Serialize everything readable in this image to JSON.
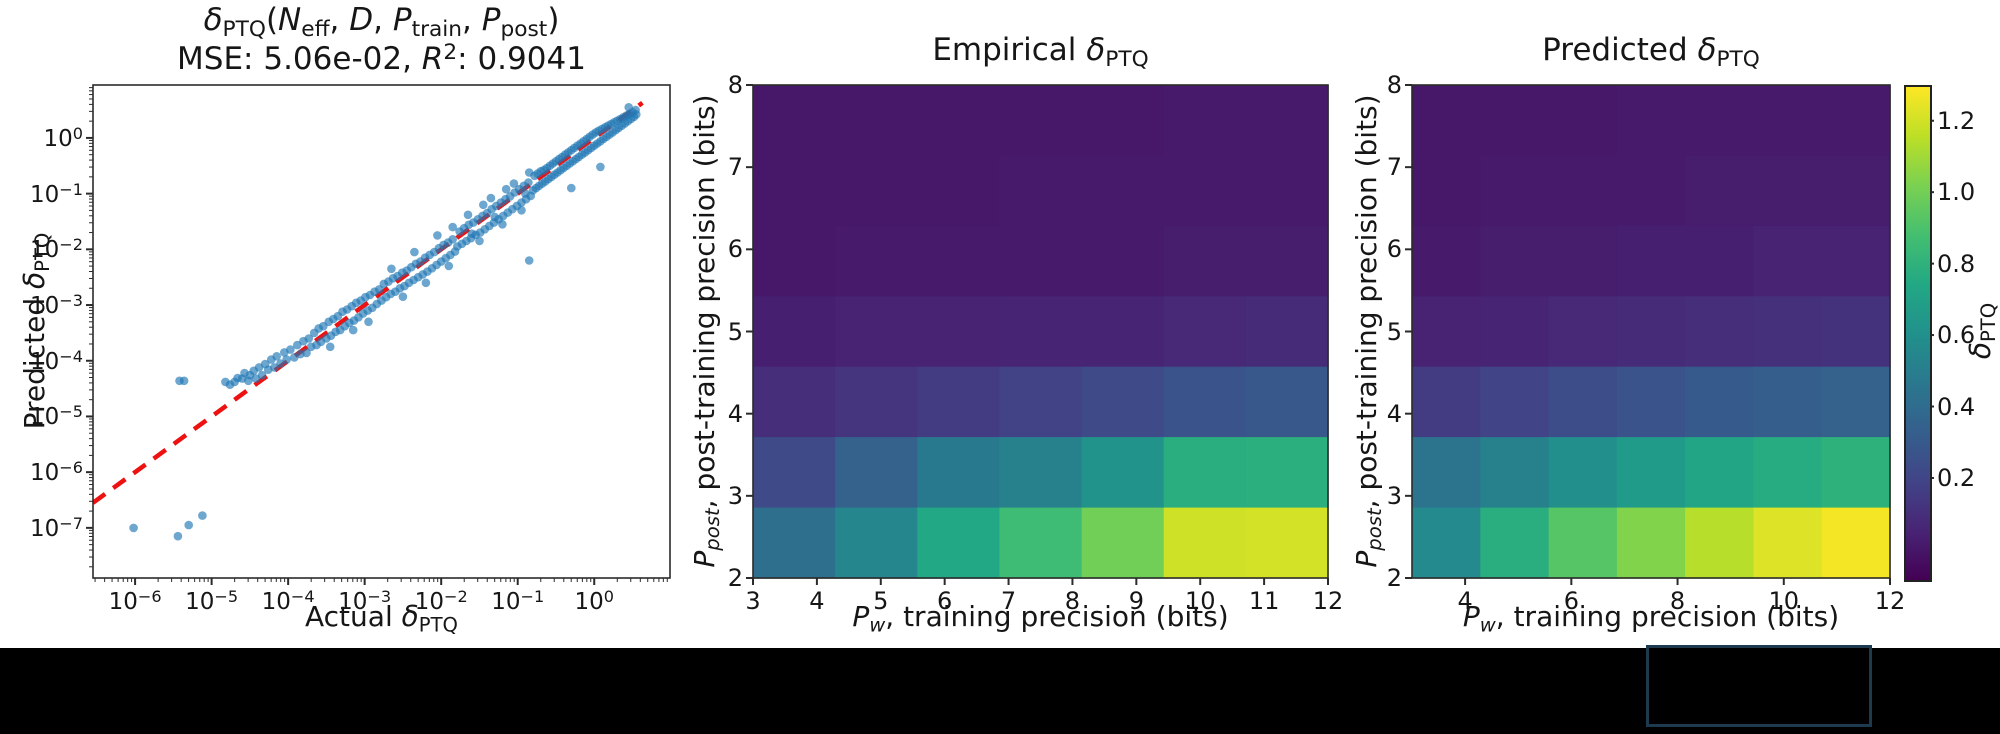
{
  "figure": {
    "background": "#ffffff"
  },
  "colors": {
    "scatter_point": "#1f77b4",
    "identity_line_red": "#ee1111",
    "axis_spine": "#2b2b2b",
    "text": "#161616",
    "black_bar": "#000000",
    "selection_box_border": "#1d3a4e"
  },
  "viridis_stops": [
    "#440154",
    "#482475",
    "#414487",
    "#355f8d",
    "#2a788e",
    "#21918c",
    "#22a884",
    "#44bf70",
    "#7ad151",
    "#bddf26",
    "#fde725"
  ],
  "text": {
    "scatter_title": {
      "hat": "ˆ",
      "delta": "δ",
      "sub": "PTQ",
      "open": "(",
      "N": "N",
      "N_sub": "eff",
      "c1": ", ",
      "D": "D",
      "c2": ", ",
      "P1": "P",
      "P1_sub": "train",
      "c3": ", ",
      "P2": "P",
      "P2_sub": "post",
      "close": ")"
    },
    "scatter_stats": {
      "mse": "MSE: 5.06e-02, ",
      "R": "R",
      "exp": "2",
      "val": ": 0.9041"
    },
    "scatter_xlabel": {
      "prefix": "Actual ",
      "delta": "δ",
      "sub": "PTQ"
    },
    "scatter_ylabel": {
      "prefix": "Predicted ",
      "delta": "δ",
      "sub": "PTQ"
    },
    "emp_title": {
      "prefix": "Empirical ",
      "delta": "δ",
      "sub": "PTQ"
    },
    "pred_title": {
      "prefix": "Predicted ",
      "delta": "δ",
      "sub": "PTQ"
    },
    "hm_xlabel": {
      "P": "P",
      "P_sub": "w",
      "rest": ", training precision (bits)"
    },
    "hm_ylabel": {
      "P": "P",
      "P_sub": "post",
      "rest": ", post-training precision (bits)"
    },
    "cb_label": {
      "delta": "δ",
      "sub": "PTQ"
    }
  },
  "chart_data": {
    "scatter": {
      "type": "scatter",
      "title": "δ̂_PTQ(N_eff, D, P_train, P_post)",
      "subtitle": "MSE: 5.06e-02, R^2: 0.9041",
      "xlabel": "Actual δ_PTQ",
      "ylabel": "Predicted δ_PTQ",
      "x_scale": "log",
      "y_scale": "log",
      "xlim_log10": [
        -6.55,
        0.99
      ],
      "ylim_log10": [
        -7.9,
        0.95
      ],
      "x_tick_exponents": [
        -6,
        -5,
        -4,
        -3,
        -2,
        -1,
        0
      ],
      "y_tick_exponents": [
        0,
        -1,
        -2,
        -3,
        -4,
        -5,
        -6,
        -7
      ],
      "identity_line": {
        "style": "dashed",
        "x_start_log10": -6.55,
        "x_end_log10": 0.63
      },
      "points_log10": [
        [
          -4.82,
          -4.38
        ],
        [
          -4.76,
          -4.43
        ],
        [
          -4.7,
          -4.38
        ],
        [
          -4.66,
          -4.31
        ],
        [
          -4.6,
          -4.32
        ],
        [
          -4.57,
          -4.22
        ],
        [
          -4.52,
          -4.36
        ],
        [
          -4.5,
          -4.26
        ],
        [
          -4.45,
          -4.18
        ],
        [
          -4.42,
          -4.32
        ],
        [
          -4.38,
          -4.12
        ],
        [
          -4.34,
          -4.26
        ],
        [
          -4.3,
          -4.06
        ],
        [
          -4.26,
          -4.16
        ],
        [
          -4.22,
          -3.98
        ],
        [
          -4.18,
          -4.12
        ],
        [
          -4.15,
          -3.92
        ],
        [
          -4.1,
          -4.05
        ],
        [
          -4.05,
          -3.85
        ],
        [
          -4.02,
          -3.98
        ],
        [
          -3.97,
          -3.8
        ],
        [
          -3.92,
          -3.94
        ],
        [
          -3.88,
          -3.72
        ],
        [
          -3.84,
          -3.88
        ],
        [
          -3.8,
          -3.65
        ],
        [
          -3.76,
          -3.86
        ],
        [
          -3.73,
          -3.6
        ],
        [
          -3.7,
          -3.75
        ],
        [
          -3.66,
          -3.5
        ],
        [
          -3.63,
          -3.72
        ],
        [
          -3.6,
          -3.42
        ],
        [
          -3.57,
          -3.66
        ],
        [
          -3.54,
          -3.38
        ],
        [
          -3.5,
          -3.6
        ],
        [
          -3.47,
          -3.3
        ],
        [
          -3.44,
          -3.55
        ],
        [
          -3.41,
          -3.25
        ],
        [
          -3.38,
          -3.48
        ],
        [
          -3.35,
          -3.2
        ],
        [
          -3.32,
          -3.45
        ],
        [
          -3.29,
          -3.12
        ],
        [
          -3.26,
          -3.38
        ],
        [
          -3.23,
          -3.08
        ],
        [
          -3.2,
          -3.32
        ],
        [
          -3.17,
          -3.02
        ],
        [
          -3.14,
          -3.28
        ],
        [
          -3.11,
          -2.96
        ],
        [
          -3.08,
          -3.22
        ],
        [
          -3.05,
          -2.92
        ],
        [
          -3.02,
          -3.15
        ],
        [
          -2.99,
          -2.86
        ],
        [
          -2.96,
          -3.1
        ],
        [
          -2.93,
          -2.82
        ],
        [
          -2.9,
          -3.05
        ],
        [
          -2.87,
          -2.76
        ],
        [
          -2.84,
          -2.98
        ],
        [
          -2.81,
          -2.72
        ],
        [
          -3.45,
          -3.75
        ],
        [
          -3.15,
          -3.45
        ],
        [
          -2.95,
          -3.3
        ],
        [
          -2.78,
          -2.92
        ],
        [
          -2.75,
          -2.62
        ],
        [
          -2.72,
          -2.86
        ],
        [
          -2.69,
          -2.58
        ],
        [
          -2.66,
          -2.8
        ],
        [
          -2.63,
          -2.52
        ],
        [
          -2.6,
          -2.76
        ],
        [
          -2.57,
          -2.48
        ],
        [
          -2.54,
          -2.7
        ],
        [
          -2.51,
          -2.42
        ],
        [
          -2.48,
          -2.66
        ],
        [
          -2.45,
          -2.38
        ],
        [
          -2.42,
          -2.6
        ],
        [
          -2.39,
          -2.32
        ],
        [
          -2.36,
          -2.55
        ],
        [
          -2.33,
          -2.26
        ],
        [
          -2.3,
          -2.5
        ],
        [
          -2.27,
          -2.22
        ],
        [
          -2.24,
          -2.45
        ],
        [
          -2.21,
          -2.15
        ],
        [
          -2.18,
          -2.4
        ],
        [
          -2.15,
          -2.1
        ],
        [
          -2.12,
          -2.34
        ],
        [
          -2.09,
          -2.05
        ],
        [
          -2.06,
          -2.28
        ],
        [
          -2.03,
          -1.98
        ],
        [
          -2.0,
          -2.22
        ],
        [
          -1.97,
          -1.92
        ],
        [
          -1.94,
          -2.16
        ],
        [
          -1.91,
          -1.88
        ],
        [
          -1.88,
          -2.1
        ],
        [
          -1.85,
          -1.82
        ],
        [
          -1.82,
          -2.04
        ],
        [
          -2.5,
          -2.85
        ],
        [
          -2.2,
          -2.6
        ],
        [
          -1.9,
          -2.3
        ],
        [
          -2.65,
          -2.35
        ],
        [
          -2.35,
          -2.05
        ],
        [
          -2.05,
          -1.75
        ],
        [
          -1.85,
          -1.6
        ],
        [
          -1.79,
          -1.95
        ],
        [
          -1.76,
          -1.68
        ],
        [
          -1.73,
          -1.9
        ],
        [
          -1.7,
          -1.62
        ],
        [
          -1.67,
          -1.85
        ],
        [
          -1.64,
          -1.56
        ],
        [
          -1.61,
          -1.8
        ],
        [
          -1.58,
          -1.52
        ],
        [
          -1.55,
          -1.74
        ],
        [
          -1.52,
          -1.46
        ],
        [
          -1.49,
          -1.7
        ],
        [
          -1.46,
          -1.4
        ],
        [
          -1.43,
          -1.64
        ],
        [
          -1.4,
          -1.35
        ],
        [
          -1.37,
          -1.58
        ],
        [
          -1.34,
          -1.28
        ],
        [
          -1.31,
          -1.52
        ],
        [
          -1.28,
          -1.22
        ],
        [
          -1.25,
          -1.46
        ],
        [
          -1.22,
          -1.16
        ],
        [
          -1.19,
          -1.4
        ],
        [
          -1.16,
          -1.1
        ],
        [
          -1.13,
          -1.34
        ],
        [
          -1.1,
          -1.05
        ],
        [
          -1.07,
          -1.28
        ],
        [
          -1.04,
          -0.98
        ],
        [
          -1.01,
          -1.22
        ],
        [
          -0.98,
          -0.92
        ],
        [
          -0.95,
          -1.16
        ],
        [
          -0.92,
          -0.86
        ],
        [
          -0.89,
          -1.1
        ],
        [
          -0.86,
          -0.8
        ],
        [
          -0.83,
          -1.04
        ],
        [
          -1.5,
          -1.85
        ],
        [
          -1.2,
          -1.55
        ],
        [
          -0.95,
          -1.3
        ],
        [
          -1.65,
          -1.38
        ],
        [
          -1.35,
          -1.08
        ],
        [
          -1.05,
          -0.82
        ],
        [
          -0.85,
          -0.62
        ],
        [
          -1.45,
          -1.2
        ],
        [
          -1.15,
          -0.92
        ],
        [
          -0.9,
          -1.0
        ],
        [
          -1.6,
          -1.72
        ],
        [
          -1.3,
          -1.42
        ],
        [
          -0.8,
          -0.94
        ],
        [
          -0.78,
          -0.68
        ],
        [
          -0.76,
          -0.9
        ],
        [
          -0.74,
          -0.64
        ],
        [
          -0.72,
          -0.86
        ],
        [
          -0.7,
          -0.6
        ],
        [
          -0.68,
          -0.82
        ],
        [
          -0.66,
          -0.58
        ],
        [
          -0.64,
          -0.78
        ],
        [
          -0.62,
          -0.54
        ],
        [
          -0.6,
          -0.74
        ],
        [
          -0.58,
          -0.5
        ],
        [
          -0.56,
          -0.7
        ],
        [
          -0.54,
          -0.46
        ],
        [
          -0.52,
          -0.66
        ],
        [
          -0.5,
          -0.42
        ],
        [
          -0.48,
          -0.62
        ],
        [
          -0.46,
          -0.38
        ],
        [
          -0.44,
          -0.58
        ],
        [
          -0.42,
          -0.34
        ],
        [
          -0.4,
          -0.54
        ],
        [
          -0.38,
          -0.3
        ],
        [
          -0.36,
          -0.5
        ],
        [
          -0.34,
          -0.26
        ],
        [
          -0.32,
          -0.46
        ],
        [
          -0.3,
          -0.22
        ],
        [
          -0.28,
          -0.42
        ],
        [
          -0.26,
          -0.18
        ],
        [
          -0.24,
          -0.38
        ],
        [
          -0.22,
          -0.14
        ],
        [
          -0.2,
          -0.34
        ],
        [
          -0.18,
          -0.1
        ],
        [
          -0.16,
          -0.3
        ],
        [
          -0.14,
          -0.06
        ],
        [
          -0.12,
          -0.26
        ],
        [
          -0.1,
          -0.02
        ],
        [
          -0.08,
          -0.22
        ],
        [
          -0.06,
          0.02
        ],
        [
          -0.04,
          -0.18
        ],
        [
          -0.02,
          0.06
        ],
        [
          0.0,
          -0.14
        ],
        [
          0.02,
          0.1
        ],
        [
          0.04,
          -0.1
        ],
        [
          0.06,
          0.13
        ],
        [
          0.08,
          -0.06
        ],
        [
          0.1,
          0.16
        ],
        [
          0.12,
          -0.02
        ],
        [
          0.14,
          0.19
        ],
        [
          0.16,
          0.02
        ],
        [
          0.18,
          0.22
        ],
        [
          0.2,
          0.06
        ],
        [
          0.22,
          0.25
        ],
        [
          0.24,
          0.1
        ],
        [
          0.26,
          0.28
        ],
        [
          0.28,
          0.14
        ],
        [
          0.3,
          0.31
        ],
        [
          0.32,
          0.18
        ],
        [
          0.34,
          0.34
        ],
        [
          0.36,
          0.22
        ],
        [
          0.38,
          0.37
        ],
        [
          0.4,
          0.26
        ],
        [
          0.42,
          0.4
        ],
        [
          0.44,
          0.3
        ],
        [
          0.46,
          0.43
        ],
        [
          0.48,
          0.34
        ],
        [
          0.5,
          0.46
        ],
        [
          0.52,
          0.38
        ],
        [
          0.54,
          0.5
        ],
        [
          0.55,
          0.42
        ],
        [
          0.45,
          0.55
        ],
        [
          -5.42,
          -4.36
        ],
        [
          -5.36,
          -4.36
        ],
        [
          -6.02,
          -7.0
        ],
        [
          -5.44,
          -7.15
        ],
        [
          -5.3,
          -6.95
        ],
        [
          -5.12,
          -6.78
        ],
        [
          -0.85,
          -2.2
        ],
        [
          0.08,
          -0.52
        ],
        [
          -0.3,
          -0.9
        ]
      ]
    },
    "heatmap_empirical": {
      "type": "heatmap",
      "title": "Empirical δ_PTQ",
      "xlabel": "P_w, training precision (bits)",
      "ylabel": "P_post, post-training precision (bits)",
      "x_range_bits": [
        3,
        12
      ],
      "y_range_bits": [
        2,
        8
      ],
      "x_ticks": [
        3,
        4,
        5,
        6,
        7,
        8,
        9,
        10,
        11,
        12
      ],
      "y_ticks": [
        2,
        3,
        4,
        5,
        6,
        7,
        8
      ],
      "n_cols": 7,
      "n_rows": 7,
      "values_rows_top_to_bottom": [
        [
          0.01,
          0.01,
          0.01,
          0.01,
          0.01,
          0.02,
          0.02
        ],
        [
          0.01,
          0.01,
          0.01,
          0.02,
          0.02,
          0.02,
          0.02
        ],
        [
          0.01,
          0.02,
          0.02,
          0.02,
          0.02,
          0.03,
          0.03
        ],
        [
          0.04,
          0.05,
          0.05,
          0.06,
          0.06,
          0.08,
          0.09
        ],
        [
          0.1,
          0.13,
          0.16,
          0.19,
          0.23,
          0.28,
          0.3
        ],
        [
          0.23,
          0.35,
          0.48,
          0.52,
          0.62,
          0.78,
          0.79
        ],
        [
          0.42,
          0.55,
          0.75,
          0.86,
          1.0,
          1.2,
          1.21
        ]
      ]
    },
    "heatmap_predicted": {
      "type": "heatmap",
      "title": "Predicted δ_PTQ",
      "xlabel": "P_w, training precision (bits)",
      "ylabel": "P_post, post-training precision (bits)",
      "x_range_bits": [
        3,
        12
      ],
      "y_range_bits": [
        2,
        8
      ],
      "x_ticks": [
        4,
        6,
        8,
        10,
        12
      ],
      "y_ticks": [
        2,
        3,
        4,
        5,
        6,
        7,
        8
      ],
      "n_cols": 7,
      "n_rows": 7,
      "values_rows_top_to_bottom": [
        [
          0.01,
          0.01,
          0.01,
          0.02,
          0.02,
          0.02,
          0.02
        ],
        [
          0.01,
          0.02,
          0.02,
          0.02,
          0.03,
          0.03,
          0.03
        ],
        [
          0.02,
          0.03,
          0.03,
          0.04,
          0.04,
          0.05,
          0.05
        ],
        [
          0.05,
          0.06,
          0.08,
          0.09,
          0.1,
          0.11,
          0.12
        ],
        [
          0.16,
          0.2,
          0.24,
          0.28,
          0.31,
          0.33,
          0.35
        ],
        [
          0.45,
          0.52,
          0.6,
          0.67,
          0.73,
          0.77,
          0.8
        ],
        [
          0.57,
          0.78,
          0.93,
          1.04,
          1.15,
          1.23,
          1.28
        ]
      ]
    },
    "colorbar": {
      "label": "δ_PTQ",
      "colormap": "viridis",
      "vmin": -0.08,
      "vmax": 1.3,
      "ticks": [
        0.2,
        0.4,
        0.6,
        0.8,
        1.0,
        1.2
      ]
    }
  }
}
